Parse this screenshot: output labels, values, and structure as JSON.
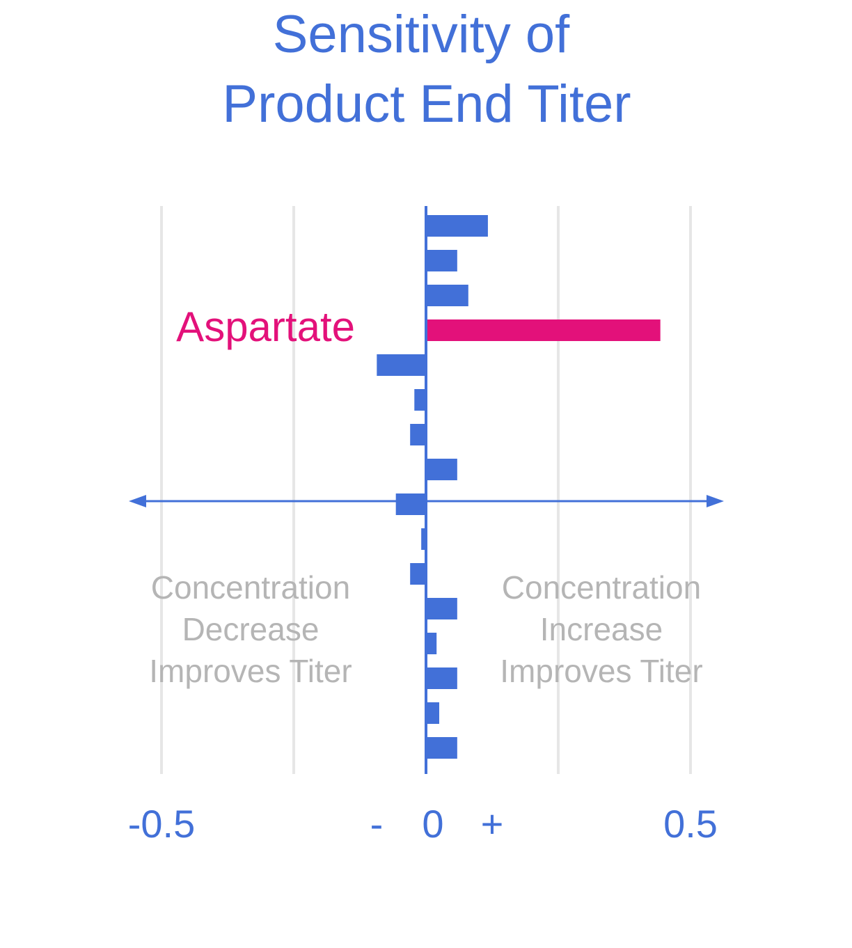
{
  "chart_data": {
    "type": "bar",
    "orientation": "horizontal",
    "title": [
      "Sensitivity of",
      "Product End Titer"
    ],
    "categories": [
      null,
      null,
      null,
      "Aspartate",
      null,
      null,
      null,
      null,
      null,
      null,
      null,
      null,
      null,
      null,
      null,
      null
    ],
    "values": [
      0.117,
      0.059,
      0.08,
      0.443,
      -0.093,
      -0.022,
      -0.03,
      0.059,
      -0.057,
      -0.009,
      -0.03,
      0.059,
      0.02,
      0.059,
      0.025,
      0.059
    ],
    "colors": [
      "#4270d8",
      "#4270d8",
      "#4270d8",
      "#e3117a",
      "#4270d8",
      "#4270d8",
      "#4270d8",
      "#4270d8",
      "#4270d8",
      "#4270d8",
      "#4270d8",
      "#4270d8",
      "#4270d8",
      "#4270d8",
      "#4270d8",
      "#4270d8"
    ],
    "xlim": [
      -0.5,
      0.5
    ],
    "xticks": [
      -0.5,
      0,
      0.5
    ],
    "gridlines": [
      -0.5,
      -0.25,
      0.25,
      0.5
    ],
    "sign_labels": [
      "-",
      "+"
    ],
    "annotations": [
      [
        "Concentration",
        "Decrease",
        "Improves Titer"
      ],
      [
        "Concentration",
        "Increase",
        "Improves Titer"
      ]
    ]
  }
}
